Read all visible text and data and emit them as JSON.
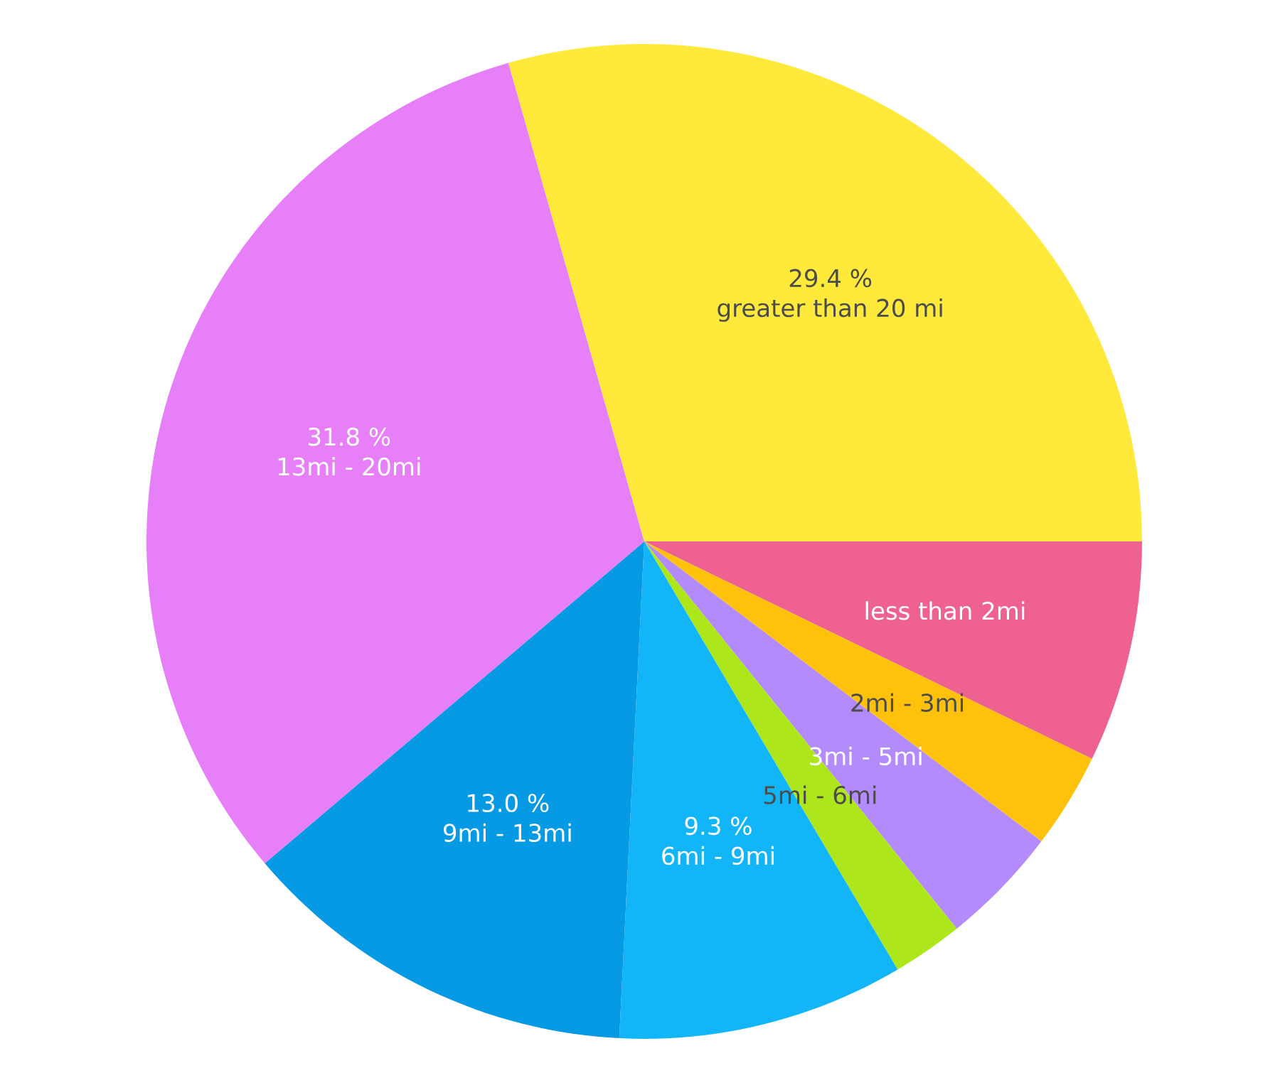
{
  "chart_data": {
    "type": "pie",
    "categories": [
      "less than 2mi",
      "2mi - 3mi",
      "3mi - 5mi",
      "5mi - 6mi",
      "6mi - 9mi",
      "9mi - 13mi",
      "13mi - 20mi",
      "greater than 20 mi"
    ],
    "values": [
      7.2,
      3.1,
      3.9,
      2.3,
      9.3,
      13.0,
      31.8,
      29.4
    ],
    "value_labels": [
      null,
      null,
      null,
      null,
      "9.3 %",
      "13.0 %",
      "31.8 %",
      "29.4 %"
    ],
    "colors": [
      "#ef6190",
      "#ffc10a",
      "#b38bfd",
      "#aee61c",
      "#12b6f8",
      "#069ae4",
      "#e67ff8",
      "#ffe93a"
    ]
  }
}
